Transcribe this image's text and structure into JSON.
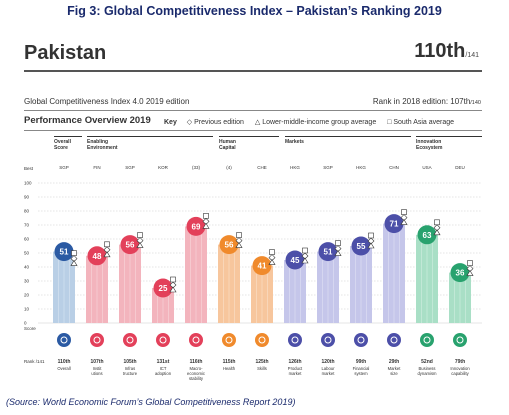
{
  "figure_title": "Fig 3: Global Competitiveness Index – Pakistan’s Ranking 2019",
  "country": "Pakistan",
  "overall_rank": "110th",
  "rank_of": "/141",
  "edition_label": "Global Competitiveness Index 4.0 2019 edition",
  "rank_2018_label": "Rank in 2018 edition: 107th",
  "rank_2018_of": "/140",
  "section_title": "Performance Overview 2019",
  "key": {
    "label": "Key",
    "previous": "◇ Previous edition",
    "lower_middle": "△ Lower-middle-income group average",
    "south_asia": "□ South Asia average"
  },
  "categories": [
    {
      "label": "Overall Score"
    },
    {
      "label": "Enabling Environment"
    },
    {
      "label": "Human Capital"
    },
    {
      "label": "Markets"
    },
    {
      "label": "Innovation Ecosystem"
    }
  ],
  "source": "(Source: World Economic Forum’s Global Competitiveness Report 2019)",
  "chart_data": {
    "type": "bar",
    "ylabel_top": "Best",
    "ylabel_bottom": "Score",
    "rank_row_label": "Rank /141",
    "ylim": [
      0,
      100
    ],
    "yticks": [
      0,
      10,
      20,
      30,
      40,
      50,
      60,
      70,
      80,
      90,
      100
    ],
    "categories": [
      "Overall",
      "Institutions",
      "Infrastructure",
      "ICT adoption",
      "Macro-economic stability",
      "Health",
      "Skills",
      "Product market",
      "Labour market",
      "Financial system",
      "Market size",
      "Business dynamism",
      "Innovation capability"
    ],
    "best_performers": [
      "SGP",
      "FIN",
      "SGP",
      "KOR",
      "(33)",
      "(4)",
      "CHE",
      "HKG",
      "SGP",
      "HKG",
      "CHN",
      "USA",
      "DEU"
    ],
    "values": [
      51,
      48,
      56,
      25,
      69,
      56,
      41,
      45,
      51,
      55,
      71,
      63,
      36
    ],
    "ranks": [
      "110th",
      "107th",
      "105th",
      "131st",
      "116th",
      "115th",
      "125th",
      "126th",
      "120th",
      "99th",
      "29th",
      "52nd",
      "79th"
    ],
    "bar_colors": [
      "#b9cfe6",
      "#f3b4bd",
      "#f3b4bd",
      "#f3b4bd",
      "#f3b4bd",
      "#f7c69d",
      "#f7c69d",
      "#c5c6ea",
      "#c5c6ea",
      "#c5c6ea",
      "#c5c6ea",
      "#a9dfc6",
      "#a9dfc6"
    ],
    "circle_colors": [
      "#2b5aa3",
      "#e3405a",
      "#e3405a",
      "#e3405a",
      "#e3405a",
      "#f08a2c",
      "#f08a2c",
      "#4c4fa8",
      "#4c4fa8",
      "#4c4fa8",
      "#4c4fa8",
      "#28a26e",
      "#28a26e"
    ],
    "grid": true
  }
}
